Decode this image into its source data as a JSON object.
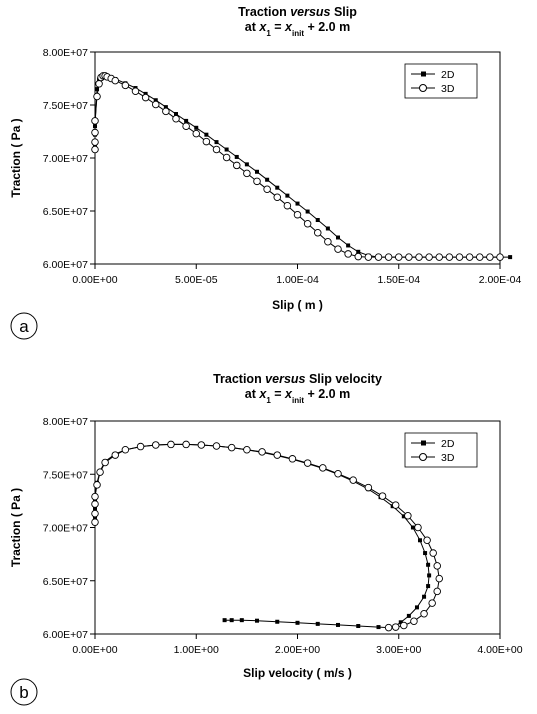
{
  "chart_data": [
    {
      "type": "line",
      "panel_label": "a",
      "title_parts": [
        {
          "text": "Traction ",
          "italic": false
        },
        {
          "text": "versus",
          "italic": true
        },
        {
          "text": " Slip",
          "italic": false
        }
      ],
      "subtitle_parts": [
        {
          "text": "at ",
          "italic": false,
          "sub": false
        },
        {
          "text": "x",
          "italic": true,
          "sub": false
        },
        {
          "text": "1",
          "italic": false,
          "sub": true
        },
        {
          "text": " = ",
          "italic": false,
          "sub": false
        },
        {
          "text": "x",
          "italic": true,
          "sub": false
        },
        {
          "text": "init",
          "italic": false,
          "sub": true
        },
        {
          "text": " + 2.0 m",
          "italic": false,
          "sub": false
        }
      ],
      "xlabel": "Slip ( m )",
      "ylabel": "Traction ( Pa )",
      "xlim": [
        0,
        0.0002
      ],
      "ylim": [
        60000000,
        80000000
      ],
      "x_ticks": [
        "0.00E+00",
        "5.00E-05",
        "1.00E-04",
        "1.50E-04",
        "2.00E-04"
      ],
      "y_ticks": [
        "6.00E+07",
        "6.50E+07",
        "7.00E+07",
        "7.50E+07",
        "8.00E+07"
      ],
      "legend_position": "top-right",
      "series": [
        {
          "name": "2D",
          "marker": "filled-square",
          "x": [
            0,
            0,
            0,
            0,
            1e-06,
            2e-06,
            3e-06,
            4e-06,
            5e-06,
            6e-06,
            8e-06,
            1e-05,
            1.5e-05,
            2e-05,
            2.5e-05,
            3e-05,
            3.5e-05,
            4e-05,
            4.5e-05,
            5e-05,
            5.5e-05,
            6e-05,
            6.5e-05,
            7e-05,
            7.5e-05,
            8e-05,
            8.5e-05,
            9e-05,
            9.5e-05,
            0.0001,
            0.000105,
            0.00011,
            0.000115,
            0.00012,
            0.000125,
            0.00013,
            0.000135,
            0.00014,
            0.000145,
            0.00015,
            0.000155,
            0.00016,
            0.000165,
            0.00017,
            0.000175,
            0.00018,
            0.000185,
            0.00019,
            0.000195,
            0.0002,
            0.000205
          ],
          "y": [
            71000000,
            71600000,
            72200000,
            73000000,
            76500000,
            77400000,
            77700000,
            77800000,
            77800000,
            77750000,
            77600000,
            77450000,
            77050000,
            76600000,
            76050000,
            75450000,
            74800000,
            74150000,
            73500000,
            72850000,
            72200000,
            71500000,
            70800000,
            70100000,
            69400000,
            68700000,
            67950000,
            67200000,
            66450000,
            65700000,
            64950000,
            64150000,
            63350000,
            62500000,
            61750000,
            61150000,
            60800000,
            60650000,
            60650000,
            60650000,
            60650000,
            60650000,
            60650000,
            60650000,
            60650000,
            60650000,
            60650000,
            60650000,
            60650000,
            60650000,
            60650000
          ]
        },
        {
          "name": "3D",
          "marker": "open-circle",
          "x": [
            0,
            0,
            0,
            0,
            1e-06,
            2e-06,
            3e-06,
            4e-06,
            5e-06,
            6e-06,
            8e-06,
            1e-05,
            1.5e-05,
            2e-05,
            2.5e-05,
            3e-05,
            3.5e-05,
            4e-05,
            4.5e-05,
            5e-05,
            5.5e-05,
            6e-05,
            6.5e-05,
            7e-05,
            7.5e-05,
            8e-05,
            8.5e-05,
            9e-05,
            9.5e-05,
            0.0001,
            0.000105,
            0.00011,
            0.000115,
            0.00012,
            0.000125,
            0.00013,
            0.000135,
            0.00014,
            0.000145,
            0.00015,
            0.000155,
            0.00016,
            0.000165,
            0.00017,
            0.000175,
            0.00018,
            0.000185,
            0.00019,
            0.000195,
            0.0002
          ],
          "y": [
            70800000,
            71500000,
            72400000,
            73500000,
            75800000,
            77000000,
            77600000,
            77750000,
            77750000,
            77650000,
            77500000,
            77300000,
            76850000,
            76300000,
            75700000,
            75050000,
            74400000,
            73700000,
            73000000,
            72300000,
            71550000,
            70800000,
            70050000,
            69300000,
            68550000,
            67800000,
            67050000,
            66300000,
            65500000,
            64650000,
            63800000,
            62950000,
            62100000,
            61400000,
            60950000,
            60700000,
            60650000,
            60650000,
            60650000,
            60650000,
            60650000,
            60650000,
            60650000,
            60650000,
            60650000,
            60650000,
            60650000,
            60650000,
            60650000,
            60650000
          ]
        }
      ]
    },
    {
      "type": "line",
      "panel_label": "b",
      "title_parts": [
        {
          "text": "Traction ",
          "italic": false
        },
        {
          "text": "versus",
          "italic": true
        },
        {
          "text": " Slip velocity",
          "italic": false
        }
      ],
      "subtitle_parts": [
        {
          "text": "at ",
          "italic": false,
          "sub": false
        },
        {
          "text": "x",
          "italic": true,
          "sub": false
        },
        {
          "text": "1",
          "italic": false,
          "sub": true
        },
        {
          "text": " = ",
          "italic": false,
          "sub": false
        },
        {
          "text": "x",
          "italic": true,
          "sub": false
        },
        {
          "text": "init",
          "italic": false,
          "sub": true
        },
        {
          "text": " + 2.0 m",
          "italic": false,
          "sub": false
        }
      ],
      "xlabel": "Slip velocity ( m/s )",
      "ylabel": "Traction ( Pa )",
      "xlim": [
        0,
        4
      ],
      "ylim": [
        60000000,
        80000000
      ],
      "x_ticks": [
        "0.00E+00",
        "1.00E+00",
        "2.00E+00",
        "3.00E+00",
        "4.00E+00"
      ],
      "y_ticks": [
        "6.00E+07",
        "6.50E+07",
        "7.00E+07",
        "7.50E+07",
        "8.00E+07"
      ],
      "legend_position": "top-right",
      "series": [
        {
          "name": "2D",
          "marker": "filled-square",
          "x": [
            0,
            0,
            0,
            0,
            0.02,
            0.05,
            0.1,
            0.2,
            0.3,
            0.45,
            0.6,
            0.75,
            0.9,
            1.05,
            1.2,
            1.35,
            1.5,
            1.65,
            1.8,
            1.95,
            2.1,
            2.25,
            2.4,
            2.55,
            2.7,
            2.82,
            2.94,
            3.05,
            3.14,
            3.21,
            3.26,
            3.29,
            3.3,
            3.29,
            3.25,
            3.18,
            3.1,
            3.02,
            2.96,
            2.9,
            2.8,
            2.6,
            2.4,
            2.2,
            2.0,
            1.8,
            1.6,
            1.45,
            1.35,
            1.28
          ],
          "y": [
            71000000,
            71800000,
            72500000,
            73000000,
            74200000,
            75300000,
            76200000,
            76900000,
            77300000,
            77600000,
            77750000,
            77800000,
            77800000,
            77750000,
            77650000,
            77500000,
            77300000,
            77050000,
            76750000,
            76400000,
            76000000,
            75550000,
            75000000,
            74350000,
            73600000,
            72850000,
            72000000,
            71050000,
            70000000,
            68800000,
            67600000,
            66500000,
            65500000,
            64500000,
            63500000,
            62500000,
            61700000,
            61100000,
            60700000,
            60600000,
            60650000,
            60750000,
            60850000,
            60950000,
            61050000,
            61150000,
            61250000,
            61300000,
            61300000,
            61300000
          ]
        },
        {
          "name": "3D",
          "marker": "open-circle",
          "x": [
            0,
            0,
            0,
            0,
            0.02,
            0.05,
            0.1,
            0.2,
            0.3,
            0.45,
            0.6,
            0.75,
            0.9,
            1.05,
            1.2,
            1.35,
            1.5,
            1.65,
            1.8,
            1.95,
            2.1,
            2.25,
            2.4,
            2.55,
            2.7,
            2.84,
            2.97,
            3.09,
            3.19,
            3.28,
            3.34,
            3.38,
            3.4,
            3.38,
            3.33,
            3.25,
            3.15,
            3.05,
            2.97,
            2.9
          ],
          "y": [
            70500000,
            71300000,
            72200000,
            72900000,
            74000000,
            75200000,
            76100000,
            76800000,
            77300000,
            77600000,
            77750000,
            77800000,
            77800000,
            77750000,
            77650000,
            77500000,
            77300000,
            77100000,
            76800000,
            76450000,
            76050000,
            75600000,
            75050000,
            74450000,
            73750000,
            72950000,
            72100000,
            71100000,
            70000000,
            68800000,
            67600000,
            66400000,
            65200000,
            64000000,
            62900000,
            61900000,
            61200000,
            60800000,
            60650000,
            60600000
          ]
        }
      ]
    }
  ]
}
